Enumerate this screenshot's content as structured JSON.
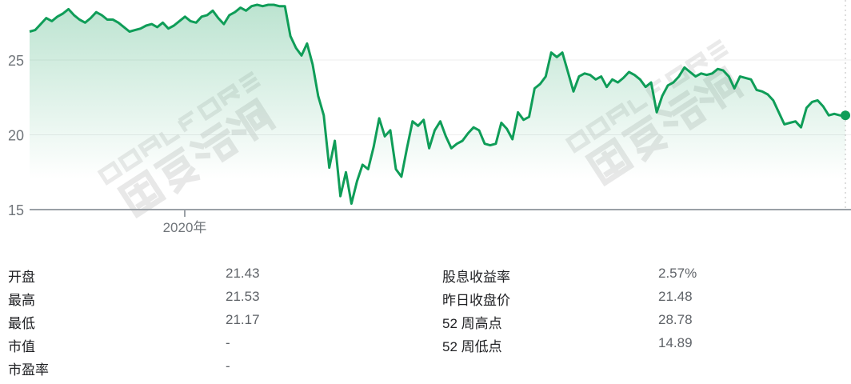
{
  "chart_data": {
    "type": "area",
    "y_ticks": [
      "15",
      "20",
      "25"
    ],
    "ylim": [
      15,
      28.6
    ],
    "x_tick_labels": [
      "2020年"
    ],
    "grid": true,
    "line_color": "#0f9d58",
    "fill_color": "#0f9d58",
    "values": [
      26.9,
      27.0,
      27.4,
      27.8,
      27.6,
      27.9,
      28.1,
      28.4,
      28.0,
      27.7,
      27.5,
      27.8,
      28.2,
      28.0,
      27.7,
      27.7,
      27.5,
      27.2,
      26.9,
      27.0,
      27.1,
      27.3,
      27.4,
      27.2,
      27.5,
      27.1,
      27.3,
      27.6,
      27.9,
      27.6,
      27.5,
      27.9,
      28.0,
      28.3,
      27.8,
      27.4,
      28.0,
      28.2,
      28.5,
      28.3,
      28.6,
      28.7,
      28.6,
      28.8,
      28.7,
      28.6,
      28.6,
      26.6,
      25.8,
      25.3,
      26.1,
      24.7,
      22.6,
      21.3,
      17.8,
      19.6,
      15.9,
      17.5,
      15.4,
      16.9,
      18.0,
      17.7,
      19.2,
      21.1,
      19.9,
      20.3,
      17.7,
      17.2,
      19.1,
      20.9,
      20.6,
      21.0,
      19.1,
      20.3,
      20.9,
      19.9,
      19.1,
      19.4,
      19.6,
      20.1,
      20.5,
      20.3,
      19.4,
      19.3,
      19.4,
      20.8,
      20.4,
      19.7,
      21.5,
      21.0,
      21.2,
      23.1,
      23.4,
      23.9,
      25.5,
      25.2,
      25.5,
      24.2,
      22.9,
      23.9,
      24.1,
      24.0,
      23.7,
      23.9,
      23.2,
      23.7,
      23.5,
      23.8,
      24.2,
      24.0,
      23.7,
      23.2,
      23.5,
      21.5,
      22.6,
      23.3,
      23.5,
      23.9,
      24.5,
      24.2,
      23.9,
      24.1,
      24.0,
      24.1,
      24.4,
      24.3,
      23.9,
      23.1,
      23.9,
      23.8,
      23.7,
      23.0,
      22.9,
      22.7,
      22.3,
      21.5,
      20.7,
      20.8,
      20.9,
      20.5,
      21.8,
      22.2,
      22.3,
      21.9,
      21.3,
      21.4,
      21.3,
      21.3
    ]
  },
  "watermark": {
    "latin": "GOALFORE",
    "cjk": "国复咨询"
  },
  "stats": {
    "left": [
      {
        "label": "开盘",
        "value": "21.43"
      },
      {
        "label": "最高",
        "value": "21.53"
      },
      {
        "label": "最低",
        "value": "21.17"
      },
      {
        "label": "市值",
        "value": "-"
      },
      {
        "label": "市盈率",
        "value": "-"
      }
    ],
    "right": [
      {
        "label": "股息收益率",
        "value": "2.57%"
      },
      {
        "label": "昨日收盘价",
        "value": "21.48"
      },
      {
        "label": "52 周高点",
        "value": "28.78"
      },
      {
        "label": "52 周低点",
        "value": "14.89"
      }
    ]
  }
}
